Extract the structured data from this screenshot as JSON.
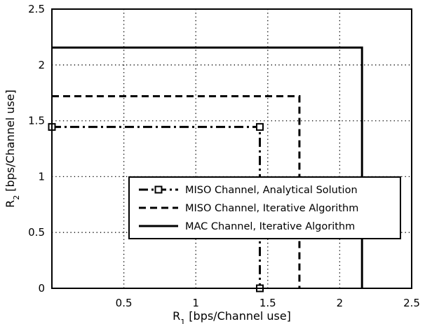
{
  "chart_data": {
    "type": "line",
    "xlabel": {
      "main": "R",
      "sub": "1",
      "rest": " [bps/Channel use]"
    },
    "ylabel": {
      "main": "R",
      "sub": "2",
      "rest": " [bps/Channel use]"
    },
    "xlim": [
      0,
      2.5
    ],
    "ylim": [
      0,
      2.5
    ],
    "xticks": [
      0.5,
      1,
      1.5,
      2,
      2.5
    ],
    "xtick_labels": [
      "0.5",
      "1",
      "1.5",
      "2",
      "2.5"
    ],
    "yticks": [
      0,
      0.5,
      1,
      1.5,
      2,
      2.5
    ],
    "ytick_labels": [
      "0",
      "0.5",
      "1",
      "1.5",
      "2",
      "2.5"
    ],
    "grid": true,
    "legend_position": "center-right",
    "series": [
      {
        "name": "MISO Channel, Analytical Solution",
        "style": "dashdot",
        "marker": "square",
        "color": "#000000",
        "points": [
          [
            0,
            1.445
          ],
          [
            1.445,
            1.445
          ],
          [
            1.445,
            0
          ]
        ],
        "marker_points": [
          [
            0,
            1.445
          ],
          [
            1.445,
            1.445
          ],
          [
            1.445,
            0
          ]
        ]
      },
      {
        "name": "MISO Channel, Iterative Algorithm",
        "style": "dashed",
        "marker": "none",
        "color": "#000000",
        "points": [
          [
            0,
            1.72
          ],
          [
            1.72,
            1.72
          ],
          [
            1.72,
            0
          ]
        ]
      },
      {
        "name": "MAC Channel, Iterative Algorithm",
        "style": "solid",
        "marker": "none",
        "color": "#000000",
        "points": [
          [
            0,
            2.155
          ],
          [
            2.155,
            2.155
          ],
          [
            2.155,
            0
          ]
        ]
      }
    ]
  }
}
